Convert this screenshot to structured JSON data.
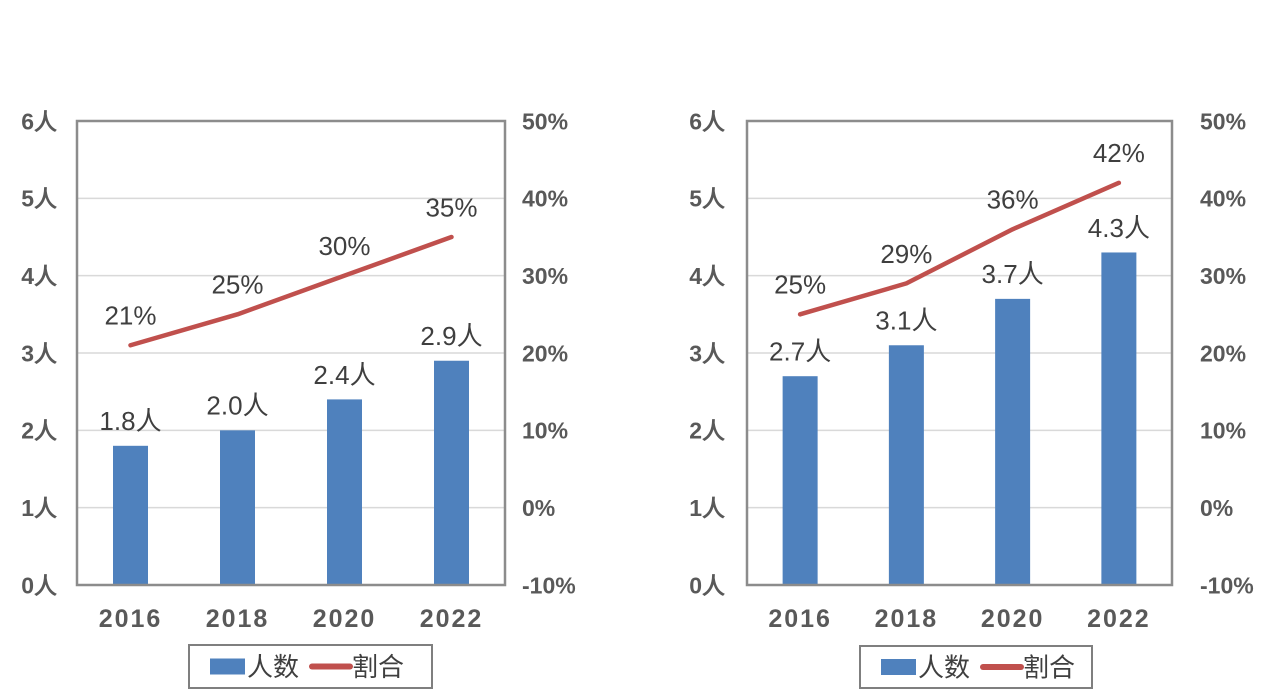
{
  "colors": {
    "background": "#ffffff",
    "bar": "#4F81BD",
    "line": "#C0504D",
    "gridline": "#D9D9D9",
    "plot_border": "#8C8C8C",
    "axis_label": "#595959",
    "data_label": "#3F3F3F",
    "legend_border": "#7F7F7F"
  },
  "chart_data": [
    {
      "type": "bar",
      "subtype": "bar-line-combo",
      "categories": [
        "2016",
        "2018",
        "2020",
        "2022"
      ],
      "series": [
        {
          "name": "人数",
          "type": "bar",
          "axis": "left",
          "values": [
            1.8,
            2.0,
            2.4,
            2.9
          ],
          "labels": [
            "1.8人",
            "2.0人",
            "2.4人",
            "2.9人"
          ]
        },
        {
          "name": "割合",
          "type": "line",
          "axis": "right",
          "values": [
            21,
            25,
            30,
            35
          ],
          "labels": [
            "21%",
            "25%",
            "30%",
            "35%"
          ]
        }
      ],
      "left_axis": {
        "min": 0,
        "max": 6,
        "ticks": [
          "6人",
          "5人",
          "4人",
          "3人",
          "2人",
          "1人",
          "0人"
        ]
      },
      "right_axis": {
        "min": -10,
        "max": 50,
        "ticks": [
          "50%",
          "40%",
          "30%",
          "20%",
          "10%",
          "0%",
          "-10%"
        ]
      },
      "grid": true,
      "legend": {
        "position": "bottom",
        "items": [
          {
            "label": "人数",
            "swatch": "bar"
          },
          {
            "label": "割合",
            "swatch": "line"
          }
        ]
      }
    },
    {
      "type": "bar",
      "subtype": "bar-line-combo",
      "categories": [
        "2016",
        "2018",
        "2020",
        "2022"
      ],
      "series": [
        {
          "name": "人数",
          "type": "bar",
          "axis": "left",
          "values": [
            2.7,
            3.1,
            3.7,
            4.3
          ],
          "labels": [
            "2.7人",
            "3.1人",
            "3.7人",
            "4.3人"
          ]
        },
        {
          "name": "割合",
          "type": "line",
          "axis": "right",
          "values": [
            25,
            29,
            36,
            42
          ],
          "labels": [
            "25%",
            "29%",
            "36%",
            "42%"
          ]
        }
      ],
      "left_axis": {
        "min": 0,
        "max": 6,
        "ticks": [
          "6人",
          "5人",
          "4人",
          "3人",
          "2人",
          "1人",
          "0人"
        ]
      },
      "right_axis": {
        "min": -10,
        "max": 50,
        "ticks": [
          "50%",
          "40%",
          "30%",
          "20%",
          "10%",
          "0%",
          "-10%"
        ]
      },
      "grid": true,
      "legend": {
        "position": "bottom",
        "items": [
          {
            "label": "人数",
            "swatch": "bar"
          },
          {
            "label": "割合",
            "swatch": "line"
          }
        ]
      }
    }
  ]
}
